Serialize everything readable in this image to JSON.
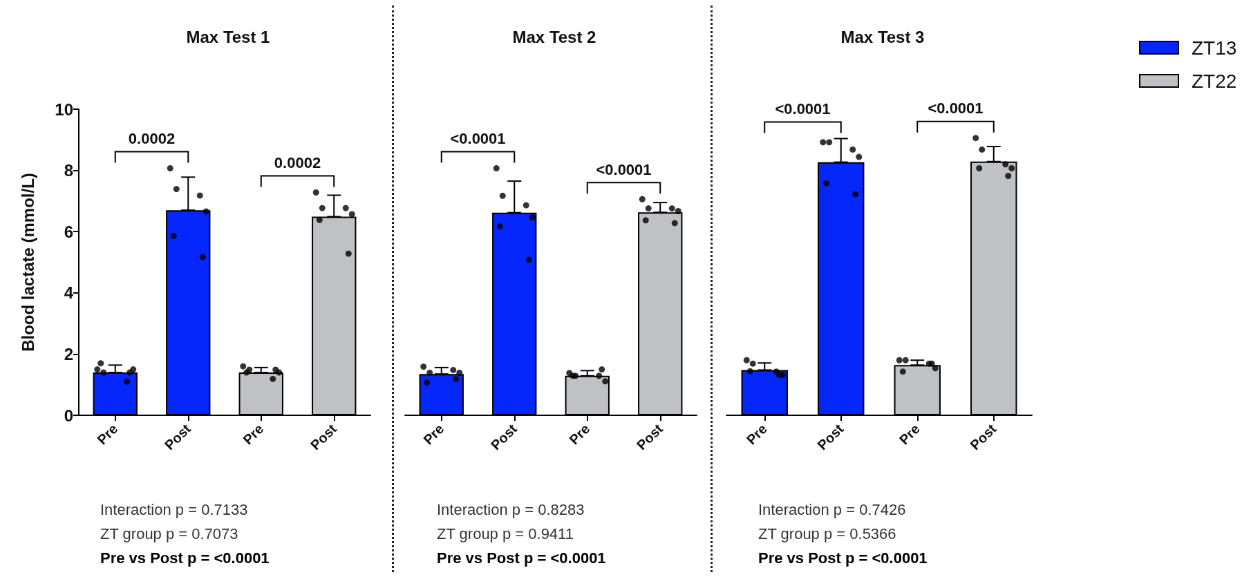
{
  "chart_data": [
    {
      "type": "bar",
      "title": "Max Test 1",
      "ylabel": "Blood lactate (mmol/L)",
      "categories": [
        "Pre",
        "Post",
        "Pre",
        "Post"
      ],
      "ylim": [
        0,
        10
      ],
      "yticks": [
        0,
        2,
        4,
        6,
        8,
        10
      ],
      "series": [
        {
          "color": "#0527fb",
          "values": [
            1.4,
            6.7,
            null,
            null
          ],
          "errors": [
            [
              1.4,
              1.64
            ],
            [
              6.7,
              7.78
            ],
            null,
            null
          ]
        },
        {
          "color": "#bfc1c4",
          "values": [
            null,
            null,
            1.4,
            6.49
          ],
          "errors": [
            null,
            null,
            [
              1.4,
              1.56
            ],
            [
              6.49,
              7.19
            ]
          ]
        },
        {
          "type": "scatter",
          "color": "#000000",
          "values": [
            1.5,
            8.07,
            1.6,
            7.28
          ]
        },
        {
          "type": "scatter",
          "color": "#000000",
          "values": [
            1.4,
            7.39,
            1.49,
            6.77
          ]
        },
        {
          "type": "scatter",
          "color": "#000000",
          "values": [
            1.1,
            7.18,
            1.19,
            6.77
          ]
        },
        {
          "type": "scatter",
          "color": "#000000",
          "values": [
            1.5,
            6.66,
            1.4,
            6.57
          ]
        },
        {
          "type": "scatter",
          "color": "#000000",
          "values": [
            1.7,
            5.86,
            1.4,
            6.38
          ]
        },
        {
          "type": "scatter",
          "color": "#000000",
          "values": [
            1.4,
            5.17,
            1.49,
            5.28
          ]
        }
      ],
      "annotations": [
        "0.0002",
        "0.0002",
        "Interaction p = 0.7133",
        "ZT group p = 0.7073",
        "Pre vs Post p = <0.0001"
      ]
    },
    {
      "type": "bar",
      "title": "Max Test 2",
      "categories": [
        "Pre",
        "Post",
        "Pre",
        "Post"
      ],
      "ylim": [
        0,
        10
      ],
      "tick_labels": "x",
      "series": [
        {
          "color": "#0527fb",
          "values": [
            1.35,
            6.62,
            null,
            null
          ],
          "errors": [
            [
              1.35,
              1.56
            ],
            [
              6.62,
              7.65
            ],
            null,
            null
          ]
        },
        {
          "color": "#bfc1c4",
          "values": [
            null,
            null,
            1.29,
            6.63
          ],
          "errors": [
            null,
            null,
            [
              1.29,
              1.46
            ],
            [
              6.63,
              6.95
            ]
          ]
        },
        {
          "type": "scatter",
          "color": "#000000",
          "values": [
            1.59,
            8.07,
            1.38,
            7.06
          ]
        },
        {
          "type": "scatter",
          "color": "#000000",
          "values": [
            1.39,
            7.17,
            1.29,
            6.76
          ]
        },
        {
          "type": "scatter",
          "color": "#000000",
          "values": [
            1.48,
            6.86,
            1.29,
            6.76
          ]
        },
        {
          "type": "scatter",
          "color": "#000000",
          "values": [
            1.39,
            6.47,
            1.11,
            6.67
          ]
        },
        {
          "type": "scatter",
          "color": "#000000",
          "values": [
            1.07,
            6.17,
            1.29,
            6.37
          ]
        },
        {
          "type": "scatter",
          "color": "#000000",
          "values": [
            1.18,
            5.08,
            1.5,
            6.28
          ]
        }
      ],
      "annotations": [
        "<0.0001",
        "<0.0001",
        "Interaction p = 0.8283",
        "ZT group p = 0.9411",
        "Pre vs Post p = <0.0001"
      ]
    },
    {
      "type": "bar",
      "title": "Max Test 3",
      "categories": [
        "Pre",
        "Post",
        "Pre",
        "Post"
      ],
      "ylim": [
        0,
        10
      ],
      "tick_labels": "x",
      "legend": "right",
      "series": [
        {
          "name": "ZT13",
          "color": "#0527fb",
          "values": [
            1.48,
            8.27,
            null,
            null
          ],
          "errors": [
            [
              1.48,
              1.71
            ],
            [
              8.27,
              9.04
            ],
            null,
            null
          ]
        },
        {
          "name": "ZT22",
          "color": "#bfc1c4",
          "values": [
            null,
            null,
            1.64,
            8.29
          ],
          "errors": [
            null,
            null,
            [
              1.64,
              1.8
            ],
            [
              8.29,
              8.78
            ]
          ]
        },
        {
          "type": "scatter",
          "color": "#000000",
          "values": [
            1.8,
            8.92,
            1.8,
            9.06
          ]
        },
        {
          "type": "scatter",
          "color": "#000000",
          "values": [
            1.69,
            8.92,
            1.8,
            8.68
          ]
        },
        {
          "type": "scatter",
          "color": "#000000",
          "values": [
            1.43,
            8.68,
            1.69,
            8.2
          ]
        },
        {
          "type": "scatter",
          "color": "#000000",
          "values": [
            1.32,
            8.44,
            1.54,
            8.07
          ]
        },
        {
          "type": "scatter",
          "color": "#000000",
          "values": [
            1.44,
            7.58,
            1.43,
            8.07
          ]
        },
        {
          "type": "scatter",
          "color": "#000000",
          "values": [
            1.32,
            7.22,
            1.69,
            7.82
          ]
        }
      ],
      "annotations": [
        "<0.0001",
        "<0.0001",
        "Interaction p = 0.7426",
        "ZT group p = 0.5366",
        "Pre vs Post p = <0.0001"
      ]
    }
  ]
}
